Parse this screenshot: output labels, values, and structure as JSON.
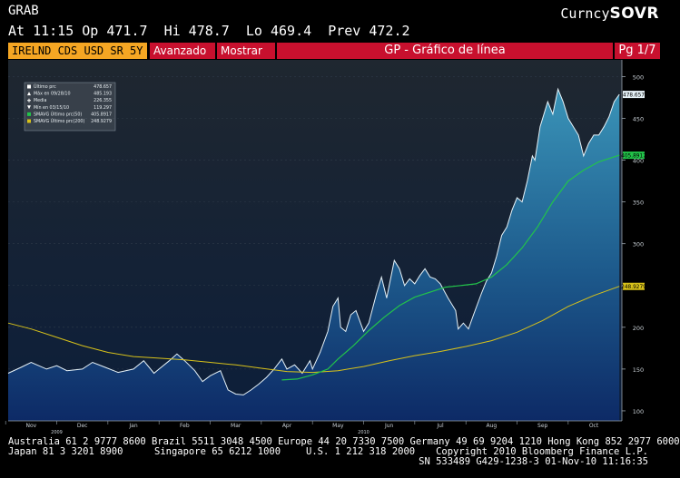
{
  "header": {
    "ticker": "GRAB",
    "quote_line": "At 11:15 Op 471.7  Hi 478.7  Lo 469.4  Prev 472.2",
    "right_prefix": "Curncy",
    "right_brand": "SOVR"
  },
  "toolbar": {
    "security": "IRELND CDS USD SR 5Y",
    "advanced": "Avanzado",
    "show": "Mostrar",
    "title": "GP - Gráfico de línea",
    "page": "Pg 1/7"
  },
  "legend": {
    "rows": [
      {
        "label": "Último prc",
        "value": "478.657",
        "swatch": "white-box"
      },
      {
        "label": "Máx en 09/28/10",
        "value": "485.193",
        "swatch": "white-up-triangle"
      },
      {
        "label": "Media",
        "value": "226.355",
        "swatch": "white-plus"
      },
      {
        "label": "Mín en 03/15/10",
        "value": "119.297",
        "swatch": "white-down-triangle"
      },
      {
        "label": "SMAVG Último prc(50)",
        "value": "405.8917",
        "swatch": "green-box"
      },
      {
        "label": "SMAVG Último prc(200)",
        "value": "248.9279",
        "swatch": "yellow-box"
      }
    ]
  },
  "price_tags": {
    "last": "478.657",
    "sma50": "405.8917",
    "sma200": "248.9279"
  },
  "footer": {
    "line1": "Australia 61 2 9777 8600 Brazil 5511 3048 4500 Europe 44 20 7330 7500 Germany 49 69 9204 1210 Hong Kong 852 2977 6000",
    "line2_left": "Japan 81 3 3201 8900",
    "line2_mid": "Singapore 65 6212 1000",
    "line2_us": "U.S. 1 212 318 2000",
    "line2_right": "Copyright 2010 Bloomberg Finance L.P.",
    "line3_right": "SN 533489 G429-1238-3 01-Nov-10 11:16:35"
  },
  "colors": {
    "background": "#000000",
    "plot_top": "#1f2730",
    "plot_bottom": "#0c1e3a",
    "area_top": "#3a94b8",
    "area_bottom": "#0d2a66",
    "price_line": "#e6f2f8",
    "sma50": "#22c44a",
    "sma200": "#d8c21a",
    "toolbar_red": "#c8102e",
    "security_orange": "#f5a623"
  },
  "chart_data": {
    "type": "area",
    "series_names": [
      "Último prc",
      "SMAVG Último prc(50)",
      "SMAVG Último prc(200)"
    ],
    "x_tick_labels": [
      "Nov",
      "Dec",
      "Jan",
      "Feb",
      "Mar",
      "Apr",
      "May",
      "Jun",
      "Jul",
      "Aug",
      "Sep",
      "Oct"
    ],
    "year_labels": [
      {
        "label": "2009",
        "at_month": 0.5
      },
      {
        "label": "2010",
        "at_month": 6.5
      }
    ],
    "y_ticks": [
      100,
      150,
      200,
      250,
      300,
      350,
      400,
      450,
      500
    ],
    "ylim": [
      88,
      520
    ],
    "xlim_months": [
      -0.45,
      11.55
    ],
    "x_unit": "months since Nov 2009",
    "price": [
      [
        -0.45,
        145
      ],
      [
        -0.2,
        152
      ],
      [
        0.0,
        158
      ],
      [
        0.3,
        150
      ],
      [
        0.5,
        154
      ],
      [
        0.7,
        148
      ],
      [
        1.0,
        150
      ],
      [
        1.2,
        158
      ],
      [
        1.45,
        152
      ],
      [
        1.7,
        146
      ],
      [
        2.0,
        150
      ],
      [
        2.2,
        160
      ],
      [
        2.4,
        145
      ],
      [
        2.5,
        150
      ],
      [
        2.7,
        160
      ],
      [
        2.85,
        168
      ],
      [
        3.0,
        160
      ],
      [
        3.2,
        148
      ],
      [
        3.35,
        135
      ],
      [
        3.5,
        142
      ],
      [
        3.7,
        148
      ],
      [
        3.85,
        125
      ],
      [
        4.0,
        120
      ],
      [
        4.15,
        119
      ],
      [
        4.3,
        125
      ],
      [
        4.45,
        132
      ],
      [
        4.6,
        140
      ],
      [
        4.75,
        150
      ],
      [
        4.9,
        162
      ],
      [
        5.0,
        150
      ],
      [
        5.15,
        155
      ],
      [
        5.3,
        145
      ],
      [
        5.45,
        160
      ],
      [
        5.5,
        150
      ],
      [
        5.65,
        170
      ],
      [
        5.8,
        195
      ],
      [
        5.9,
        225
      ],
      [
        6.0,
        235
      ],
      [
        6.05,
        200
      ],
      [
        6.15,
        195
      ],
      [
        6.25,
        215
      ],
      [
        6.35,
        220
      ],
      [
        6.5,
        195
      ],
      [
        6.6,
        205
      ],
      [
        6.75,
        240
      ],
      [
        6.85,
        260
      ],
      [
        6.95,
        235
      ],
      [
        7.1,
        280
      ],
      [
        7.2,
        270
      ],
      [
        7.3,
        250
      ],
      [
        7.4,
        258
      ],
      [
        7.5,
        252
      ],
      [
        7.6,
        262
      ],
      [
        7.7,
        270
      ],
      [
        7.8,
        260
      ],
      [
        7.9,
        258
      ],
      [
        8.0,
        252
      ],
      [
        8.15,
        235
      ],
      [
        8.3,
        220
      ],
      [
        8.35,
        198
      ],
      [
        8.45,
        205
      ],
      [
        8.55,
        198
      ],
      [
        8.65,
        215
      ],
      [
        8.8,
        240
      ],
      [
        8.9,
        255
      ],
      [
        9.0,
        265
      ],
      [
        9.1,
        285
      ],
      [
        9.2,
        310
      ],
      [
        9.3,
        320
      ],
      [
        9.4,
        340
      ],
      [
        9.5,
        355
      ],
      [
        9.6,
        350
      ],
      [
        9.7,
        375
      ],
      [
        9.8,
        405
      ],
      [
        9.85,
        400
      ],
      [
        9.95,
        440
      ],
      [
        10.1,
        470
      ],
      [
        10.2,
        455
      ],
      [
        10.3,
        485
      ],
      [
        10.4,
        470
      ],
      [
        10.5,
        450
      ],
      [
        10.6,
        440
      ],
      [
        10.7,
        430
      ],
      [
        10.8,
        405
      ],
      [
        10.9,
        420
      ],
      [
        11.0,
        430
      ],
      [
        11.1,
        430
      ],
      [
        11.2,
        440
      ],
      [
        11.3,
        452
      ],
      [
        11.4,
        470
      ],
      [
        11.5,
        478.657
      ]
    ],
    "sma50": [
      [
        4.9,
        137
      ],
      [
        5.2,
        138
      ],
      [
        5.5,
        143
      ],
      [
        5.8,
        150
      ],
      [
        6.0,
        162
      ],
      [
        6.3,
        178
      ],
      [
        6.6,
        196
      ],
      [
        6.9,
        212
      ],
      [
        7.2,
        226
      ],
      [
        7.5,
        236
      ],
      [
        7.8,
        242
      ],
      [
        8.1,
        248
      ],
      [
        8.4,
        250
      ],
      [
        8.7,
        252
      ],
      [
        9.0,
        260
      ],
      [
        9.3,
        275
      ],
      [
        9.6,
        295
      ],
      [
        9.9,
        320
      ],
      [
        10.2,
        350
      ],
      [
        10.5,
        375
      ],
      [
        10.8,
        388
      ],
      [
        11.1,
        398
      ],
      [
        11.4,
        404
      ],
      [
        11.5,
        405.8917
      ]
    ],
    "sma200": [
      [
        -0.45,
        205
      ],
      [
        0.0,
        198
      ],
      [
        0.5,
        188
      ],
      [
        1.0,
        178
      ],
      [
        1.5,
        170
      ],
      [
        2.0,
        165
      ],
      [
        2.5,
        163
      ],
      [
        3.0,
        161
      ],
      [
        3.5,
        158
      ],
      [
        4.0,
        155
      ],
      [
        4.5,
        151
      ],
      [
        5.0,
        147
      ],
      [
        5.5,
        146
      ],
      [
        6.0,
        148
      ],
      [
        6.5,
        153
      ],
      [
        7.0,
        160
      ],
      [
        7.5,
        166
      ],
      [
        8.0,
        171
      ],
      [
        8.5,
        177
      ],
      [
        9.0,
        184
      ],
      [
        9.5,
        194
      ],
      [
        10.0,
        208
      ],
      [
        10.5,
        225
      ],
      [
        11.0,
        238
      ],
      [
        11.5,
        248.9279
      ]
    ]
  }
}
